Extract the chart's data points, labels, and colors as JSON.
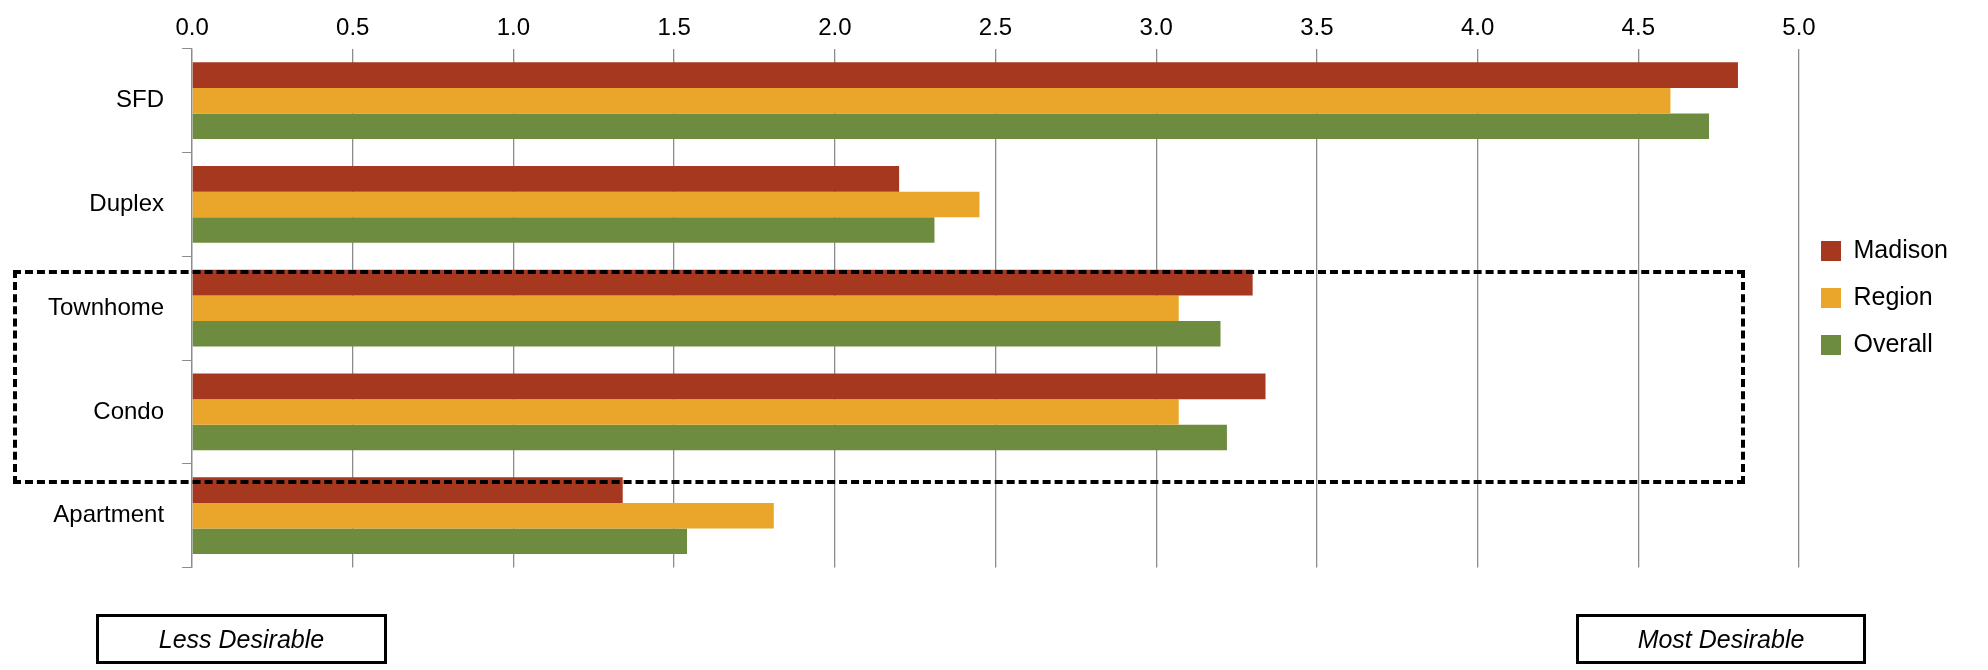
{
  "chart_data": {
    "type": "bar",
    "orientation": "horizontal",
    "categories": [
      "SFD",
      "Duplex",
      "Townhome",
      "Condo",
      "Apartment"
    ],
    "series": [
      {
        "name": "Madison",
        "color": "#a5381f",
        "values": [
          4.81,
          2.2,
          3.3,
          3.34,
          1.34
        ]
      },
      {
        "name": "Region",
        "color": "#eaa62a",
        "values": [
          4.6,
          2.45,
          3.07,
          3.07,
          1.81
        ]
      },
      {
        "name": "Overall",
        "color": "#6e8c3f",
        "values": [
          4.72,
          2.31,
          3.2,
          3.22,
          1.54
        ]
      }
    ],
    "xlim": [
      0,
      5
    ],
    "xticks": [
      {
        "value": 0,
        "label": "0.0"
      },
      {
        "value": 0.5,
        "label": "0.5"
      },
      {
        "value": 1,
        "label": "1.0"
      },
      {
        "value": 1.5,
        "label": "1.5"
      },
      {
        "value": 2,
        "label": "2.0"
      },
      {
        "value": 2.5,
        "label": "2.5"
      },
      {
        "value": 3,
        "label": "3.0"
      },
      {
        "value": 3.5,
        "label": "3.5"
      },
      {
        "value": 4,
        "label": "4.0"
      },
      {
        "value": 4.5,
        "label": "4.5"
      },
      {
        "value": 5,
        "label": "5.0"
      }
    ],
    "grid": "x",
    "legend": "right",
    "annotations": [
      "Less Desirable",
      "Most Desirable"
    ]
  }
}
